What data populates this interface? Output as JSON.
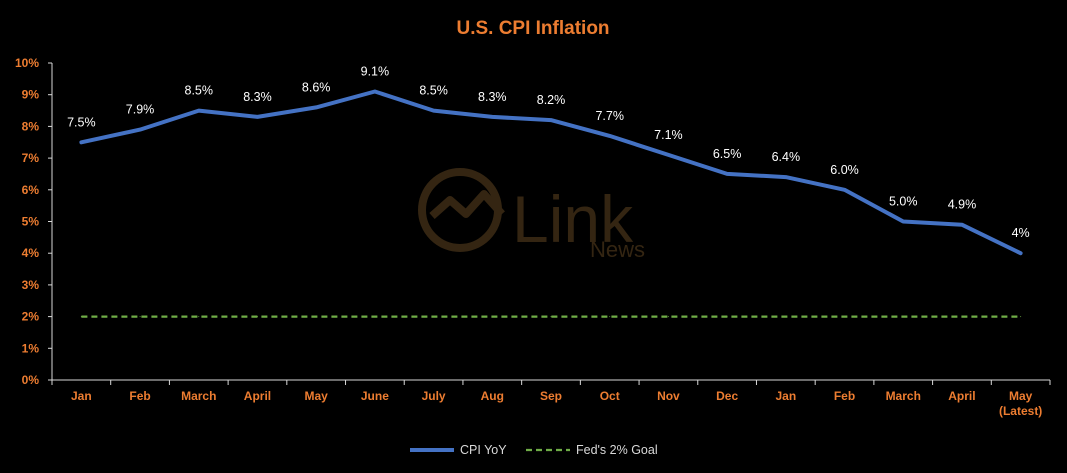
{
  "chart_data": {
    "type": "line",
    "title": "U.S. CPI Inflation",
    "categories": [
      "Jan",
      "Feb",
      "March",
      "April",
      "May",
      "June",
      "July",
      "Aug",
      "Sep",
      "Oct",
      "Nov",
      "Dec",
      "Jan",
      "Feb",
      "March",
      "April",
      "May\n(Latest)"
    ],
    "series": [
      {
        "name": "CPI YoY",
        "values": [
          7.5,
          7.9,
          8.5,
          8.3,
          8.6,
          9.1,
          8.5,
          8.3,
          8.2,
          7.7,
          7.1,
          6.5,
          6.4,
          6.0,
          5.0,
          4.9,
          4.0
        ],
        "data_labels": [
          "7.5%",
          "7.9%",
          "8.5%",
          "8.3%",
          "8.6%",
          "9.1%",
          "8.5%",
          "8.3%",
          "8.2%",
          "7.7%",
          "7.1%",
          "6.5%",
          "6.4%",
          "6.0%",
          "5.0%",
          "4.9%",
          "4%"
        ],
        "color": "#4472c4",
        "style": "solid"
      },
      {
        "name": "Fed's 2% Goal",
        "values": [
          2,
          2,
          2,
          2,
          2,
          2,
          2,
          2,
          2,
          2,
          2,
          2,
          2,
          2,
          2,
          2,
          2
        ],
        "color": "#70ad47",
        "style": "dashed"
      }
    ],
    "ylim": [
      0,
      10
    ],
    "yticks": [
      0,
      1,
      2,
      3,
      4,
      5,
      6,
      7,
      8,
      9,
      10
    ],
    "ytick_labels": [
      "0%",
      "1%",
      "2%",
      "3%",
      "4%",
      "5%",
      "6%",
      "7%",
      "8%",
      "9%",
      "10%"
    ],
    "xlabel": "",
    "ylabel": "",
    "grid": false,
    "legend_position": "bottom-center",
    "colors": {
      "background": "#000000",
      "axis_text": "#ed7d31",
      "title": "#ed7d31",
      "axis_line": "#d9d9d9"
    }
  },
  "watermark": {
    "text": "Link",
    "subtext": "News"
  }
}
